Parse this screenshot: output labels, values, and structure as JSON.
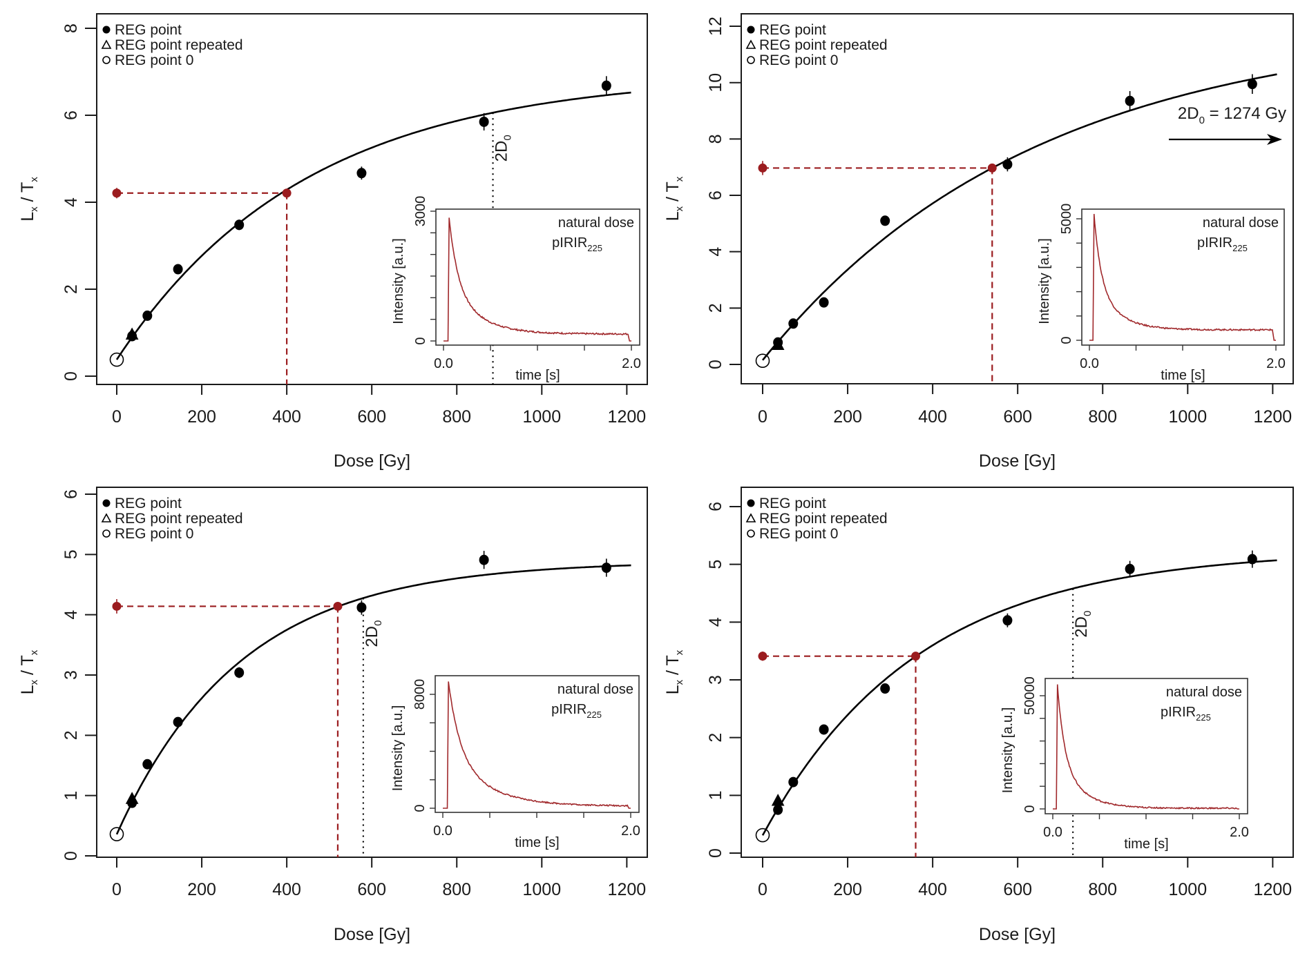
{
  "chart_data": [
    {
      "id": "panel-top-left",
      "type": "scatter",
      "xlabel": "Dose [Gy]",
      "ylabel": "Lx / Tx",
      "xlim": [
        0,
        1200
      ],
      "ylim": [
        0,
        8
      ],
      "xticks": [
        0,
        200,
        400,
        600,
        800,
        1000,
        1200
      ],
      "yticks": [
        0,
        2,
        4,
        6,
        8
      ],
      "legend": {
        "placement": "top-left",
        "entries": [
          {
            "symbol": "filled-circle",
            "label": "REG point"
          },
          {
            "symbol": "open-triangle",
            "label": "REG point repeated"
          },
          {
            "symbol": "open-circle",
            "label": "REG point 0"
          }
        ]
      },
      "points": [
        {
          "x": 36,
          "y": 0.92,
          "err": 0.08,
          "kind": "reg"
        },
        {
          "x": 72,
          "y": 1.39,
          "err": 0.08,
          "kind": "reg"
        },
        {
          "x": 144,
          "y": 2.46,
          "err": 0.1,
          "kind": "reg"
        },
        {
          "x": 288,
          "y": 3.48,
          "err": 0.12,
          "kind": "reg"
        },
        {
          "x": 576,
          "y": 4.67,
          "err": 0.15,
          "kind": "reg"
        },
        {
          "x": 864,
          "y": 5.85,
          "err": 0.2,
          "kind": "reg"
        },
        {
          "x": 1152,
          "y": 6.68,
          "err": 0.22,
          "kind": "reg"
        },
        {
          "x": 36,
          "y": 0.95,
          "err": 0.05,
          "kind": "repeated"
        },
        {
          "x": 0,
          "y": 0.38,
          "err": 0.03,
          "kind": "zero"
        }
      ],
      "fit": {
        "a": 6.95,
        "D0": 443,
        "c": 25,
        "xmax": 1210
      },
      "natural": {
        "Lx_Tx": 4.21,
        "err": 0.12,
        "De": 400
      },
      "two_D0": {
        "dose": 885,
        "label": "2D",
        "sub": "0",
        "style": "line"
      },
      "inset": {
        "xlabel": "time [s]",
        "ylabel": "Intensity [a.u.]",
        "xlim": [
          0,
          2
        ],
        "ylim_max": 3000,
        "ytick_step": 500,
        "xtick_labels": [
          "0.0",
          "2.0"
        ],
        "ytick_labels": [
          "0",
          "3000"
        ],
        "peak": 2850,
        "peak_t": 0.06,
        "tail": 160,
        "tau": 0.09,
        "annotation": "natural dose",
        "signal": "pIRIR",
        "signal_sub": "225"
      }
    },
    {
      "id": "panel-top-right",
      "type": "scatter",
      "xlabel": "Dose [Gy]",
      "ylabel": "Lx / Tx",
      "xlim": [
        0,
        1200
      ],
      "ylim": [
        0,
        12
      ],
      "xticks": [
        0,
        200,
        400,
        600,
        800,
        1000,
        1200
      ],
      "yticks": [
        0,
        2,
        4,
        6,
        8,
        10,
        12
      ],
      "legend": {
        "placement": "top-left",
        "entries": [
          {
            "symbol": "filled-circle",
            "label": "REG point"
          },
          {
            "symbol": "open-triangle",
            "label": "REG point repeated"
          },
          {
            "symbol": "open-circle",
            "label": "REG point 0"
          }
        ]
      },
      "points": [
        {
          "x": 36,
          "y": 0.78,
          "err": 0.1,
          "kind": "reg"
        },
        {
          "x": 72,
          "y": 1.45,
          "err": 0.1,
          "kind": "reg"
        },
        {
          "x": 144,
          "y": 2.2,
          "err": 0.12,
          "kind": "reg"
        },
        {
          "x": 288,
          "y": 5.1,
          "err": 0.18,
          "kind": "reg"
        },
        {
          "x": 576,
          "y": 7.1,
          "err": 0.25,
          "kind": "reg"
        },
        {
          "x": 864,
          "y": 9.35,
          "err": 0.35,
          "kind": "reg"
        },
        {
          "x": 1152,
          "y": 9.95,
          "err": 0.35,
          "kind": "reg"
        },
        {
          "x": 36,
          "y": 0.68,
          "err": 0.05,
          "kind": "repeated"
        },
        {
          "x": 0,
          "y": 0.13,
          "err": 0.03,
          "kind": "zero"
        }
      ],
      "fit": {
        "a": 12.08,
        "D0": 637,
        "c": 8,
        "xmax": 1210
      },
      "natural": {
        "Lx_Tx": 6.97,
        "err": 0.25,
        "De": 540
      },
      "two_D0": {
        "dose": 1274,
        "label": "2D",
        "sub": "0",
        "suffix": " = 1274 Gy",
        "style": "arrow"
      },
      "inset": {
        "xlabel": "time [s]",
        "ylabel": "Intensity [a.u.]",
        "xlim": [
          0,
          2
        ],
        "ylim_max": 5000,
        "ytick_step": 1000,
        "xtick_labels": [
          "0.0",
          "2.0"
        ],
        "ytick_labels": [
          "0",
          "5000"
        ],
        "peak": 5200,
        "peak_t": 0.05,
        "tail": 430,
        "tau": 0.07,
        "annotation": "natural dose",
        "signal": "pIRIR",
        "signal_sub": "225"
      }
    },
    {
      "id": "panel-bottom-left",
      "type": "scatter",
      "xlabel": "Dose [Gy]",
      "ylabel": "Lx / Tx",
      "xlim": [
        0,
        1200
      ],
      "ylim": [
        0,
        6
      ],
      "xticks": [
        0,
        200,
        400,
        600,
        800,
        1000,
        1200
      ],
      "yticks": [
        0,
        1,
        2,
        3,
        4,
        5,
        6
      ],
      "legend": {
        "placement": "top-left",
        "entries": [
          {
            "symbol": "filled-circle",
            "label": "REG point"
          },
          {
            "symbol": "open-triangle",
            "label": "REG point repeated"
          },
          {
            "symbol": "open-circle",
            "label": "REG point 0"
          }
        ]
      },
      "points": [
        {
          "x": 36,
          "y": 0.88,
          "err": 0.05,
          "kind": "reg"
        },
        {
          "x": 72,
          "y": 1.52,
          "err": 0.05,
          "kind": "reg"
        },
        {
          "x": 144,
          "y": 2.22,
          "err": 0.07,
          "kind": "reg"
        },
        {
          "x": 288,
          "y": 3.04,
          "err": 0.09,
          "kind": "reg"
        },
        {
          "x": 576,
          "y": 4.12,
          "err": 0.12,
          "kind": "reg"
        },
        {
          "x": 864,
          "y": 4.91,
          "err": 0.15,
          "kind": "reg"
        },
        {
          "x": 1152,
          "y": 4.78,
          "err": 0.15,
          "kind": "reg"
        },
        {
          "x": 36,
          "y": 0.94,
          "err": 0.04,
          "kind": "repeated"
        },
        {
          "x": 0,
          "y": 0.36,
          "err": 0.02,
          "kind": "zero"
        }
      ],
      "fit": {
        "a": 4.89,
        "D0": 290,
        "c": 22,
        "xmax": 1210
      },
      "natural": {
        "Lx_Tx": 4.14,
        "err": 0.12,
        "De": 520
      },
      "two_D0": {
        "dose": 580,
        "label": "2D",
        "sub": "0",
        "style": "line"
      },
      "inset": {
        "xlabel": "time [s]",
        "ylabel": "Intensity [a.u.]",
        "xlim": [
          0,
          2
        ],
        "ylim_max": 8000,
        "ytick_step": 2000,
        "xtick_labels": [
          "0.0",
          "2.0"
        ],
        "ytick_labels": [
          "0",
          "8000"
        ],
        "peak": 8900,
        "peak_t": 0.06,
        "tail": 150,
        "tau": 0.12,
        "annotation": "natural dose",
        "signal": "pIRIR",
        "signal_sub": "225"
      }
    },
    {
      "id": "panel-bottom-right",
      "type": "scatter",
      "xlabel": "Dose [Gy]",
      "ylabel": "Lx / Tx",
      "xlim": [
        0,
        1200
      ],
      "ylim": [
        0,
        6
      ],
      "xticks": [
        0,
        200,
        400,
        600,
        800,
        1000,
        1200
      ],
      "yticks": [
        0,
        1,
        2,
        3,
        4,
        5,
        6
      ],
      "legend": {
        "placement": "top-left",
        "entries": [
          {
            "symbol": "filled-circle",
            "label": "REG point"
          },
          {
            "symbol": "open-triangle",
            "label": "REG point repeated"
          },
          {
            "symbol": "open-circle",
            "label": "REG point 0"
          }
        ]
      },
      "points": [
        {
          "x": 36,
          "y": 0.75,
          "err": 0.05,
          "kind": "reg"
        },
        {
          "x": 72,
          "y": 1.23,
          "err": 0.05,
          "kind": "reg"
        },
        {
          "x": 144,
          "y": 2.14,
          "err": 0.07,
          "kind": "reg"
        },
        {
          "x": 288,
          "y": 2.85,
          "err": 0.08,
          "kind": "reg"
        },
        {
          "x": 576,
          "y": 4.03,
          "err": 0.12,
          "kind": "reg"
        },
        {
          "x": 864,
          "y": 4.92,
          "err": 0.14,
          "kind": "reg"
        },
        {
          "x": 1152,
          "y": 5.09,
          "err": 0.15,
          "kind": "reg"
        },
        {
          "x": 36,
          "y": 0.9,
          "err": 0.04,
          "kind": "repeated"
        },
        {
          "x": 0,
          "y": 0.31,
          "err": 0.02,
          "kind": "zero"
        }
      ],
      "fit": {
        "a": 5.25,
        "D0": 365,
        "c": 22,
        "xmax": 1210
      },
      "natural": {
        "Lx_Tx": 3.41,
        "err": 0.08,
        "De": 360
      },
      "two_D0": {
        "dose": 730,
        "label": "2D",
        "sub": "0",
        "style": "line"
      },
      "inset": {
        "xlabel": "time [s]",
        "ylabel": "Intensity [a.u.]",
        "xlim": [
          0,
          2
        ],
        "ylim_max": 50000,
        "ytick_step": 10000,
        "xtick_labels": [
          "0.0",
          "2.0"
        ],
        "ytick_labels": [
          "0",
          "50000"
        ],
        "peak": 55000,
        "peak_t": 0.05,
        "tail": 300,
        "tau": 0.07,
        "annotation": "natural dose",
        "signal": "pIRIR",
        "signal_sub": "225"
      }
    }
  ],
  "colors": {
    "axis": "#1a1a1a",
    "fit_curve": "#000000",
    "natural": "#9b1c1f",
    "decay_curve": "#a0282b"
  }
}
